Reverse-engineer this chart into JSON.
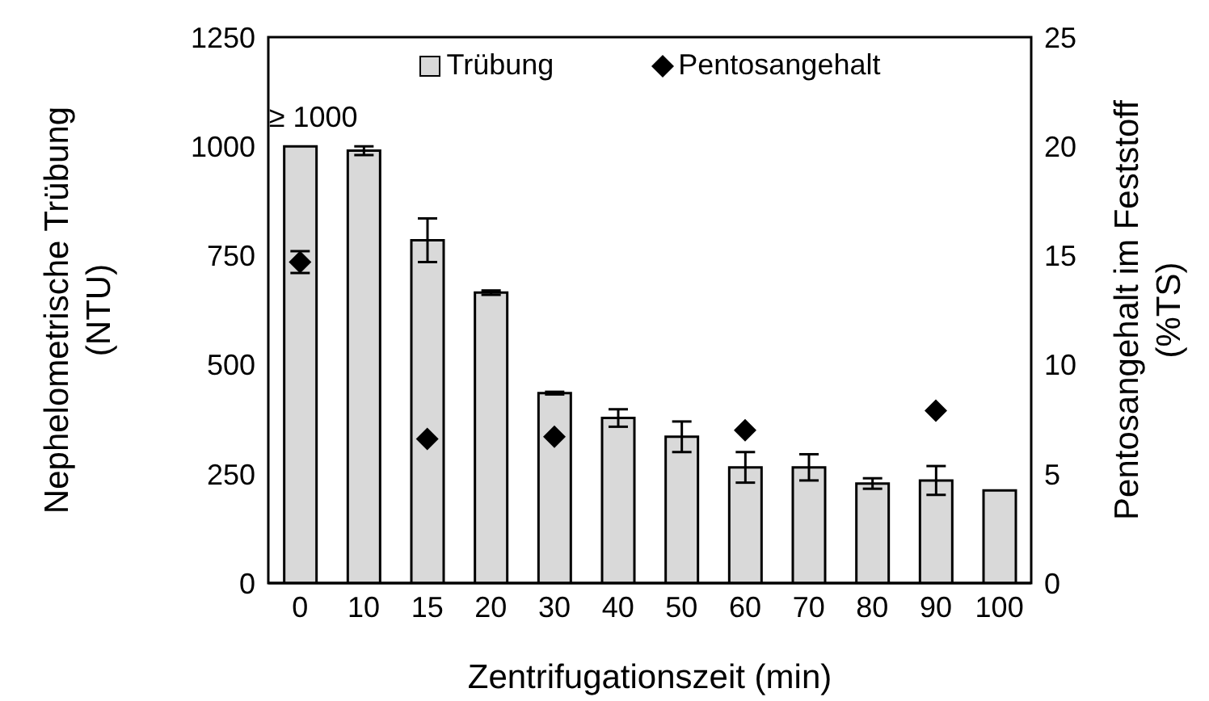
{
  "chart_data": {
    "type": "bar",
    "xlabel": "Zentrifugationszeit (min)",
    "ylabel": "Nephelometrische Trübung (NTU)",
    "y2label": "Pentosangehalt im Feststoff (%TS)",
    "categories": [
      "0",
      "10",
      "15",
      "20",
      "30",
      "40",
      "50",
      "60",
      "70",
      "80",
      "90",
      "100"
    ],
    "series": [
      {
        "name": "Trübung",
        "color": "#d9d9d9",
        "values": [
          1000,
          990,
          785,
          665,
          435,
          378,
          335,
          265,
          265,
          228,
          235,
          212
        ],
        "errors": [
          null,
          10,
          50,
          5,
          3,
          20,
          35,
          35,
          30,
          12,
          33,
          null
        ],
        "value_labels": [
          "≥ 1000",
          null,
          null,
          null,
          null,
          null,
          null,
          null,
          null,
          null,
          null,
          null
        ]
      },
      {
        "name": "Pentosangehalt",
        "type": "scatter",
        "axis": "y2",
        "color": "#000000",
        "marker": "diamond",
        "values": [
          14.7,
          null,
          6.6,
          null,
          6.7,
          null,
          null,
          7.0,
          null,
          null,
          7.9,
          null
        ],
        "errors": [
          0.5,
          null,
          null,
          null,
          null,
          null,
          null,
          null,
          null,
          null,
          null,
          null
        ]
      }
    ],
    "ylim": [
      0,
      1250
    ],
    "yticks": [
      0,
      250,
      500,
      750,
      1000,
      1250
    ],
    "y2lim": [
      0,
      25
    ],
    "y2ticks": [
      0,
      5,
      10,
      15,
      20,
      25
    ],
    "legend": "top",
    "grid": false
  }
}
